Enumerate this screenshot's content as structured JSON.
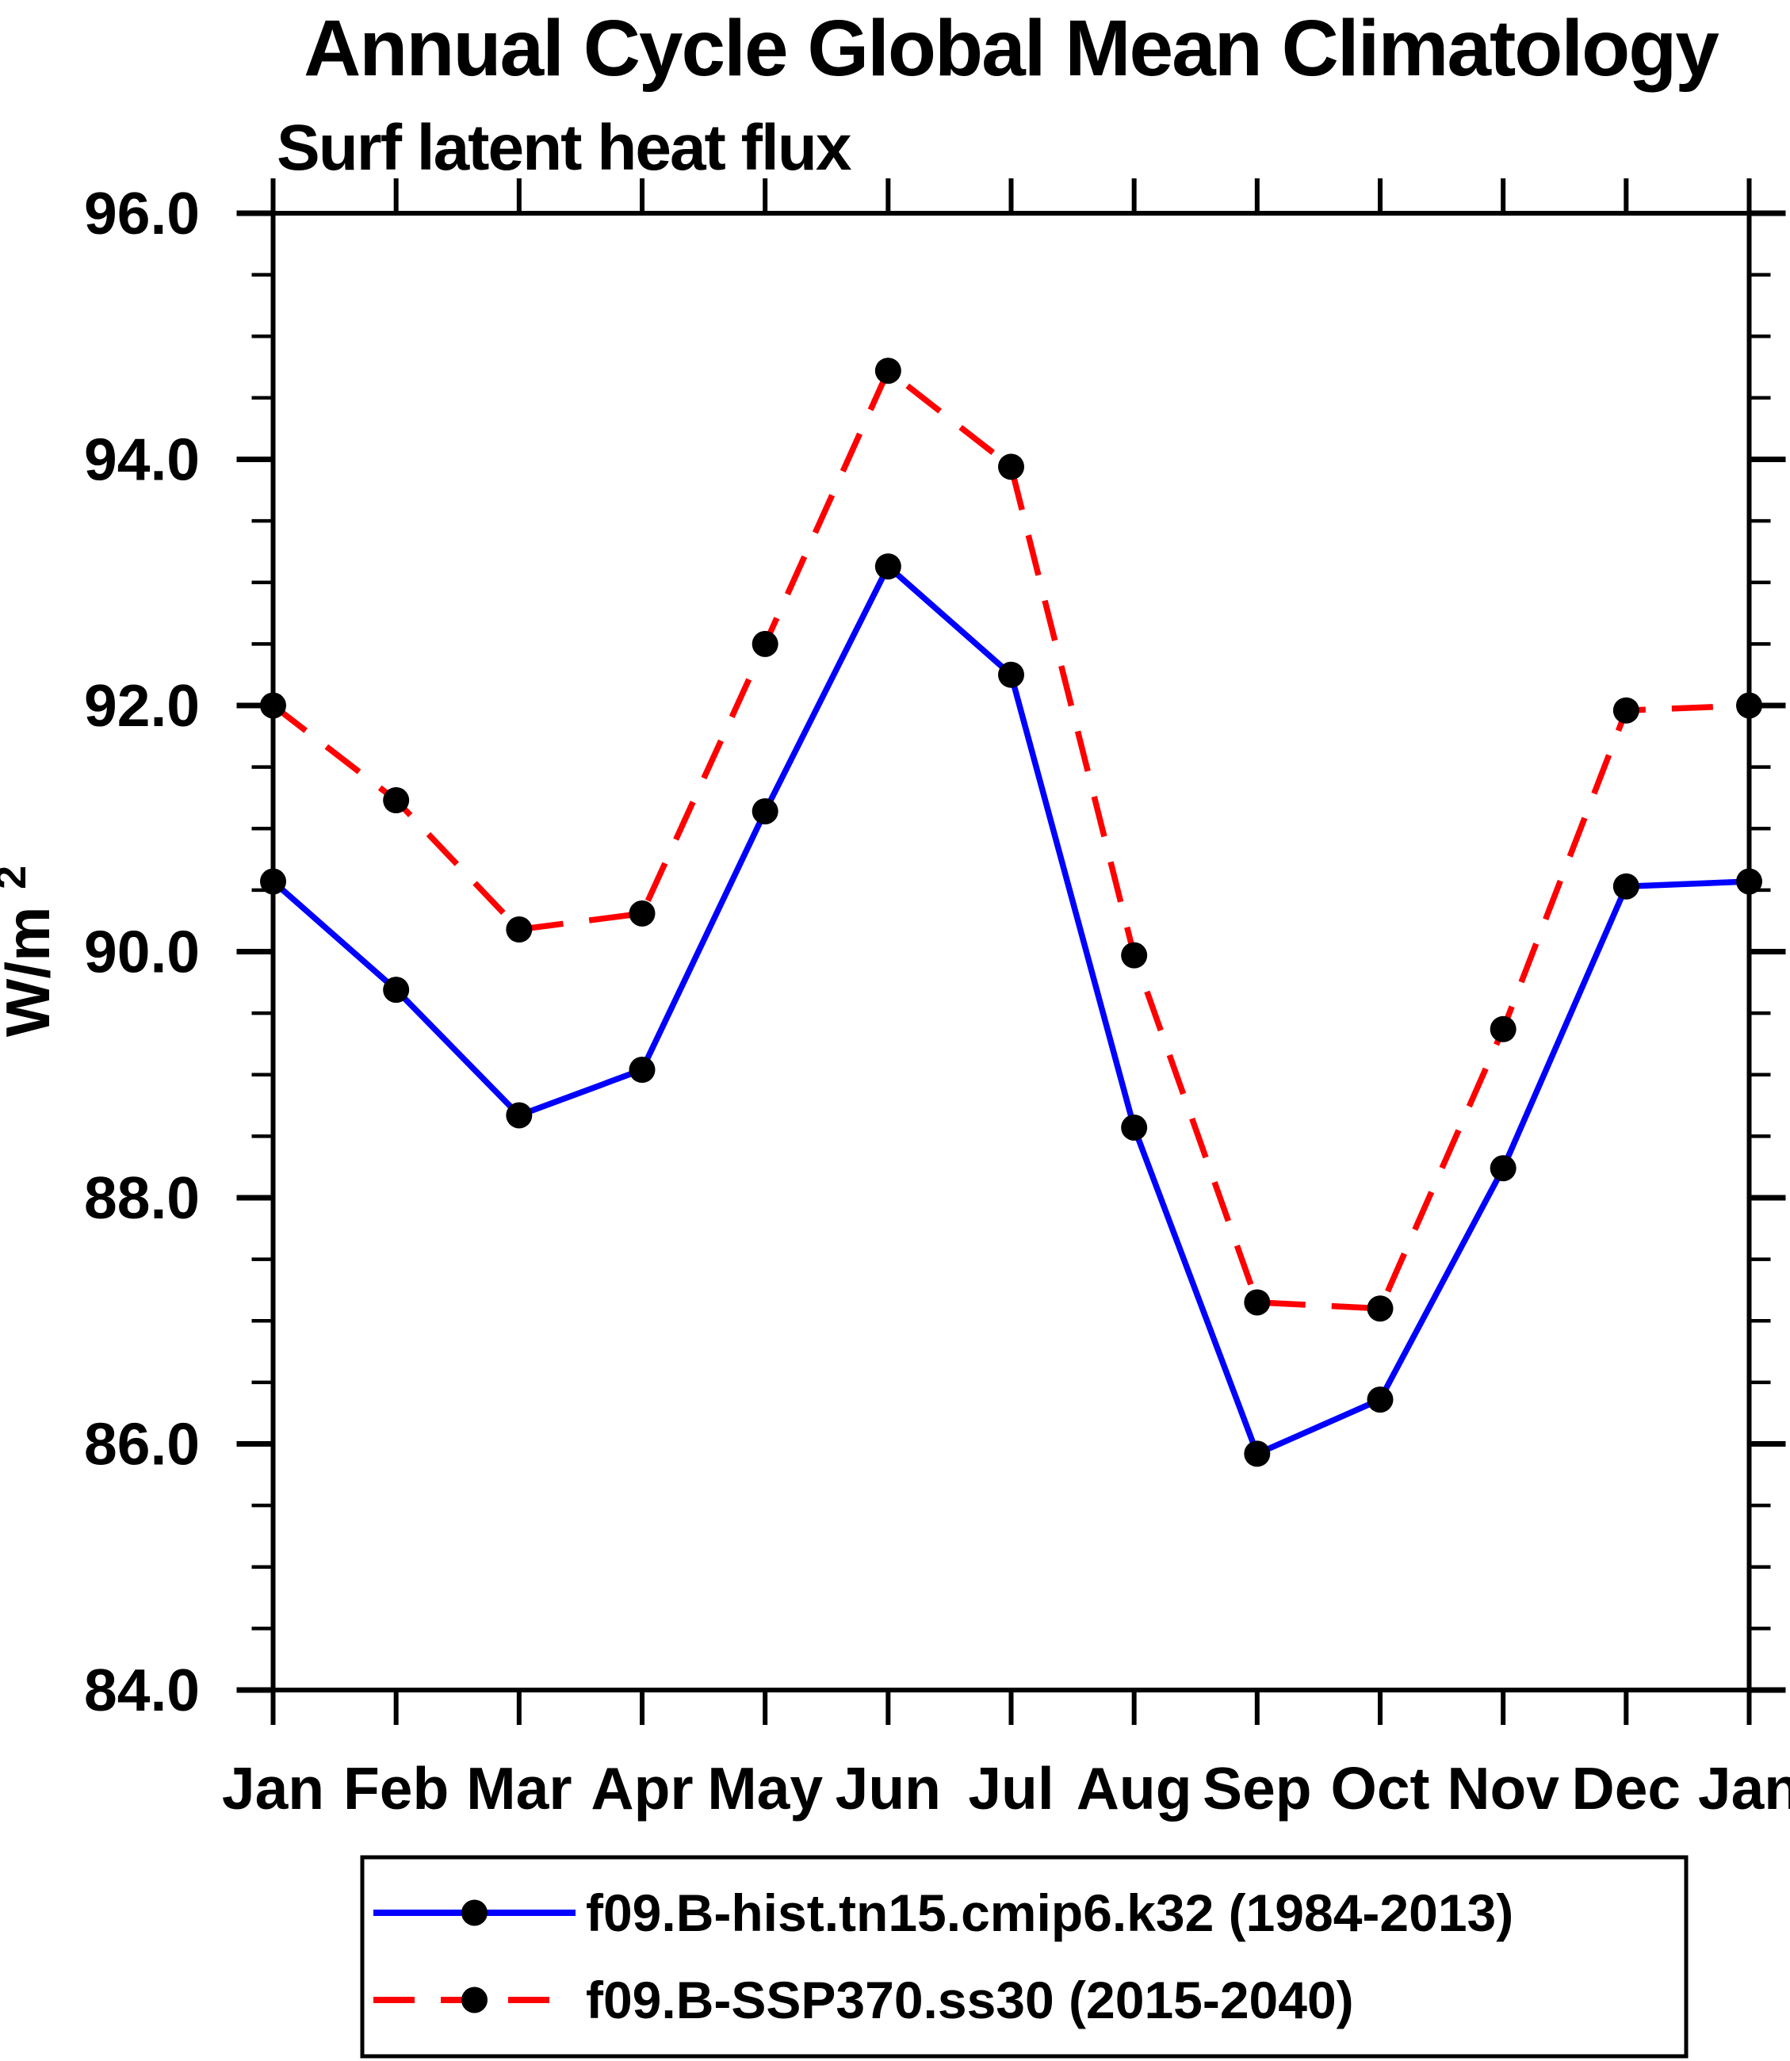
{
  "chart": {
    "title": "Annual Cycle Global Mean Climatology",
    "subtitle": "Surf latent heat flux",
    "ylabel": "W/m",
    "ylabel_sup": "2"
  },
  "legend": {
    "entries": [
      {
        "label": "f09.B-hist.tn15.cmip6.k32 (1984-2013)",
        "color": "#0000ff",
        "line_style": "solid",
        "marker_color": "#000000"
      },
      {
        "label": "f09.B-SSP370.ss30 (2015-2040)",
        "color": "#ff0000",
        "line_style": "dashed",
        "marker_color": "#000000"
      }
    ]
  },
  "chart_data": {
    "type": "line",
    "title": "Annual Cycle Global Mean Climatology",
    "subtitle": "Surf latent heat flux",
    "xlabel": "",
    "ylabel": "W/m2",
    "categories": [
      "Jan",
      "Feb",
      "Mar",
      "Apr",
      "May",
      "Jun",
      "Jul",
      "Aug",
      "Sep",
      "Oct",
      "Nov",
      "Dec",
      "Jan"
    ],
    "series": [
      {
        "name": "f09.B-hist.tn15.cmip6.k32 (1984-2013)",
        "color": "#0000ff",
        "line_style": "solid",
        "marker": "circle",
        "marker_color": "#000000",
        "values": [
          90.57,
          89.69,
          88.67,
          89.04,
          91.14,
          93.13,
          92.25,
          88.57,
          85.92,
          86.36,
          88.24,
          90.53,
          90.57
        ]
      },
      {
        "name": "f09.B-SSP370.ss30 (2015-2040)",
        "color": "#ff0000",
        "line_style": "dashed",
        "marker": "circle",
        "marker_color": "#000000",
        "values": [
          92.0,
          91.23,
          90.18,
          90.31,
          92.5,
          94.72,
          93.94,
          89.97,
          87.15,
          87.1,
          89.37,
          91.96,
          92.0
        ]
      }
    ],
    "ylim": [
      84.0,
      96.0
    ],
    "ytick_major_step": 2.0,
    "ytick_minor_step": 0.5,
    "ytick_major_labels": [
      "84.0",
      "86.0",
      "88.0",
      "90.0",
      "92.0",
      "94.0",
      "96.0"
    ],
    "grid": false,
    "legend_position": "bottom",
    "axes_color": "#000000"
  }
}
